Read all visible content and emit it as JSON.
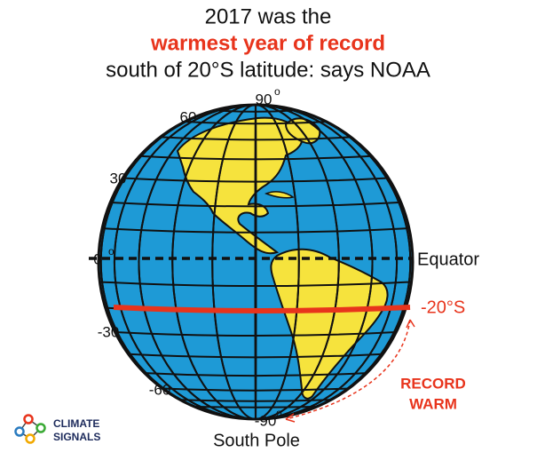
{
  "header": {
    "lines": [
      "2017 was the",
      "warmest year of record",
      "south of 20°S latitude: says NOAA"
    ]
  },
  "globe": {
    "latitude_labels": [
      "90",
      "60",
      "30",
      "0",
      "-30",
      "-60",
      "-90"
    ],
    "degree_mark": "o",
    "equator_label": "Equator",
    "band_label": "-20°S",
    "note": [
      "RECORD",
      "WARM"
    ],
    "pole_label": "South Pole"
  },
  "logo": {
    "lines": [
      "CLIMATE",
      "SIGNALS"
    ]
  }
}
